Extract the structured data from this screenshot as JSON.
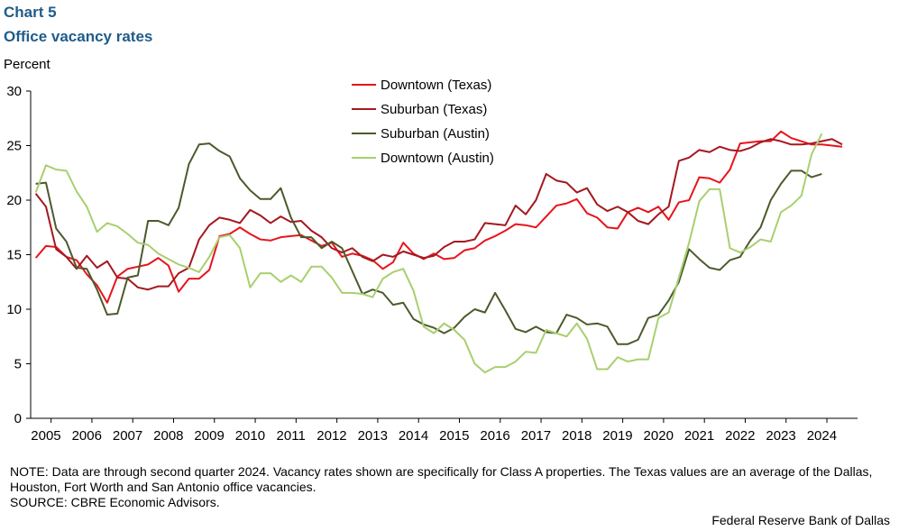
{
  "header": {
    "title": "Chart 5",
    "subtitle": "Office vacancy rates"
  },
  "chart_data": {
    "type": "line",
    "title": "Office vacancy rates",
    "ylabel": "Percent",
    "xlabel": "",
    "ylim": [
      0,
      30
    ],
    "yticks": [
      0,
      5,
      10,
      15,
      20,
      25,
      30
    ],
    "year_labels": [
      "2005",
      "2006",
      "2007",
      "2008",
      "2009",
      "2010",
      "2011",
      "2012",
      "2013",
      "2014",
      "2015",
      "2016",
      "2017",
      "2018",
      "2019",
      "2020",
      "2021",
      "2022",
      "2023",
      "2024"
    ],
    "x_start": "2004 Q3",
    "frequency": "quarterly",
    "grid": false,
    "legend_position": "top-center",
    "series": [
      {
        "name": "Downtown (Texas)",
        "color": "#e8141c",
        "values": [
          14.7,
          15.8,
          15.7,
          14.8,
          14.5,
          13.2,
          12.2,
          10.6,
          13.0,
          13.7,
          13.9,
          14.1,
          14.7,
          14.0,
          11.6,
          12.8,
          12.8,
          13.6,
          16.7,
          16.9,
          17.5,
          16.9,
          16.4,
          16.3,
          16.6,
          16.7,
          16.8,
          16.3,
          15.8,
          16.1,
          14.8,
          15.1,
          14.9,
          14.5,
          13.7,
          14.3,
          16.1,
          15.1,
          14.6,
          15.1,
          14.6,
          14.7,
          15.4,
          15.6,
          16.3,
          16.7,
          17.2,
          17.8,
          17.7,
          17.5,
          18.5,
          19.5,
          19.7,
          20.1,
          18.8,
          18.4,
          17.5,
          17.4,
          18.9,
          19.3,
          18.9,
          19.4,
          18.2,
          19.8,
          20.0,
          22.1,
          22.0,
          21.6,
          22.8,
          25.2,
          25.3,
          25.4,
          25.4,
          26.3,
          25.7,
          25.4,
          25.1,
          25.1,
          25.0,
          24.9
        ]
      },
      {
        "name": "Suburban (Texas)",
        "color": "#a3191f",
        "values": [
          20.6,
          19.4,
          15.5,
          14.8,
          13.7,
          14.9,
          13.8,
          14.4,
          12.9,
          12.8,
          12.0,
          11.8,
          12.1,
          12.1,
          13.3,
          13.8,
          16.4,
          17.7,
          18.4,
          18.2,
          17.9,
          19.1,
          18.6,
          17.9,
          18.5,
          18.0,
          18.1,
          17.2,
          16.6,
          15.6,
          15.2,
          15.6,
          14.8,
          14.4,
          15.0,
          14.8,
          15.3,
          15.0,
          14.7,
          14.9,
          15.7,
          16.2,
          16.2,
          16.4,
          17.9,
          17.8,
          17.7,
          19.5,
          18.7,
          20.0,
          22.4,
          21.8,
          21.6,
          20.7,
          21.1,
          19.6,
          19.0,
          19.4,
          18.9,
          18.1,
          17.8,
          18.7,
          19.4,
          23.6,
          23.9,
          24.6,
          24.4,
          24.9,
          24.6,
          24.5,
          24.8,
          25.3,
          25.6,
          25.4,
          25.1,
          25.1,
          25.2,
          25.4,
          25.6,
          25.1
        ]
      },
      {
        "name": "Suburban (Austin)",
        "color": "#4b5a2b",
        "values": [
          21.5,
          21.6,
          17.4,
          16.2,
          13.8,
          13.7,
          11.8,
          9.5,
          9.6,
          12.9,
          13.1,
          18.1,
          18.1,
          17.7,
          19.3,
          23.3,
          25.1,
          25.2,
          24.5,
          24.0,
          22.0,
          20.9,
          20.1,
          20.1,
          21.1,
          18.4,
          16.6,
          16.6,
          15.6,
          16.2,
          15.6,
          13.5,
          11.4,
          11.8,
          11.5,
          10.4,
          10.6,
          9.1,
          8.6,
          8.3,
          7.8,
          8.3,
          9.3,
          10.0,
          9.7,
          11.5,
          9.9,
          8.2,
          7.9,
          8.4,
          7.9,
          7.8,
          9.5,
          9.2,
          8.6,
          8.7,
          8.4,
          6.8,
          6.8,
          7.2,
          9.2,
          9.5,
          10.8,
          12.5,
          15.5,
          14.6,
          13.8,
          13.6,
          14.5,
          14.8,
          16.3,
          17.5,
          20.0,
          21.5,
          22.7,
          22.7,
          22.1,
          22.4
        ]
      },
      {
        "name": "Downtown (Austin)",
        "color": "#a9cf6f",
        "values": [
          20.7,
          23.2,
          22.8,
          22.7,
          20.8,
          19.4,
          17.1,
          17.9,
          17.6,
          16.9,
          16.1,
          15.9,
          15.1,
          14.6,
          14.1,
          13.8,
          13.4,
          14.8,
          16.6,
          16.8,
          15.6,
          12.0,
          13.3,
          13.3,
          12.5,
          13.1,
          12.5,
          13.9,
          13.9,
          12.9,
          11.5,
          11.5,
          11.4,
          11.1,
          12.8,
          13.4,
          13.7,
          11.7,
          8.4,
          7.8,
          8.7,
          8.1,
          7.2,
          5.0,
          4.2,
          4.7,
          4.7,
          5.2,
          6.1,
          6.0,
          8.1,
          7.8,
          7.5,
          8.7,
          7.3,
          4.5,
          4.5,
          5.6,
          5.2,
          5.4,
          5.4,
          9.2,
          9.7,
          12.9,
          16.1,
          19.9,
          21.0,
          21.0,
          15.6,
          15.2,
          15.7,
          16.4,
          16.2,
          18.9,
          19.5,
          20.4,
          24.2,
          26.1
        ]
      }
    ]
  },
  "footer": {
    "note": "NOTE: Data are through  second quarter 2024. Vacancy rates shown are specifically for  Class A properties. The Texas values are an average of the Dallas, Houston,  Fort Worth and San Antonio office vacancies.",
    "source": "SOURCE: CBRE Economic Advisors.",
    "credit": "Federal Reserve Bank of Dallas"
  }
}
